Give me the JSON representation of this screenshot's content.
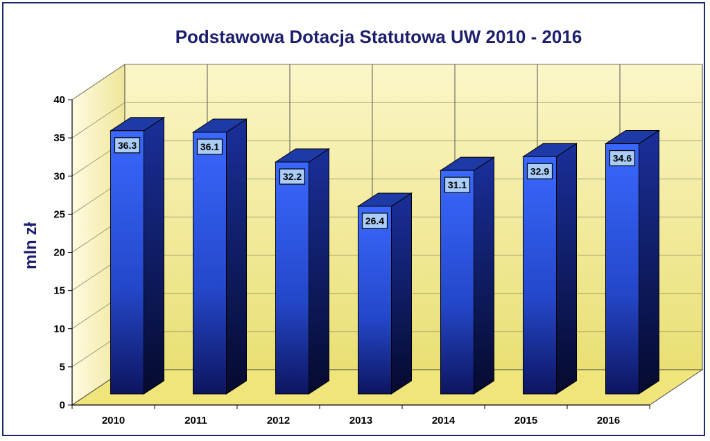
{
  "chart_data": {
    "type": "bar",
    "title": "Podstawowa Dotacja Statutowa UW 2010 - 2016",
    "ylabel": "mln zł",
    "xlabel": "",
    "categories": [
      "2010",
      "2011",
      "2012",
      "2013",
      "2014",
      "2015",
      "2016"
    ],
    "values": [
      36.3,
      36.1,
      32.2,
      26.4,
      31.1,
      32.9,
      34.6
    ],
    "data_labels": [
      "36.3",
      "36.1",
      "32.2",
      "26.4",
      "31.1",
      "32.9",
      "34.6"
    ],
    "yticks": [
      "0",
      "5",
      "10",
      "15",
      "20",
      "25",
      "30",
      "35",
      "40"
    ],
    "ylim": [
      0,
      40
    ],
    "grid": true,
    "legend": "none",
    "colors": {
      "bar_front": "#2f5df0",
      "bar_side": "#0d1a5e",
      "bar_top": "#1a3aa8",
      "wall": "#f3ec9a",
      "floor": "#f0e67a",
      "label_box": "#a9cdf7",
      "title": "#1c1f6e"
    }
  }
}
